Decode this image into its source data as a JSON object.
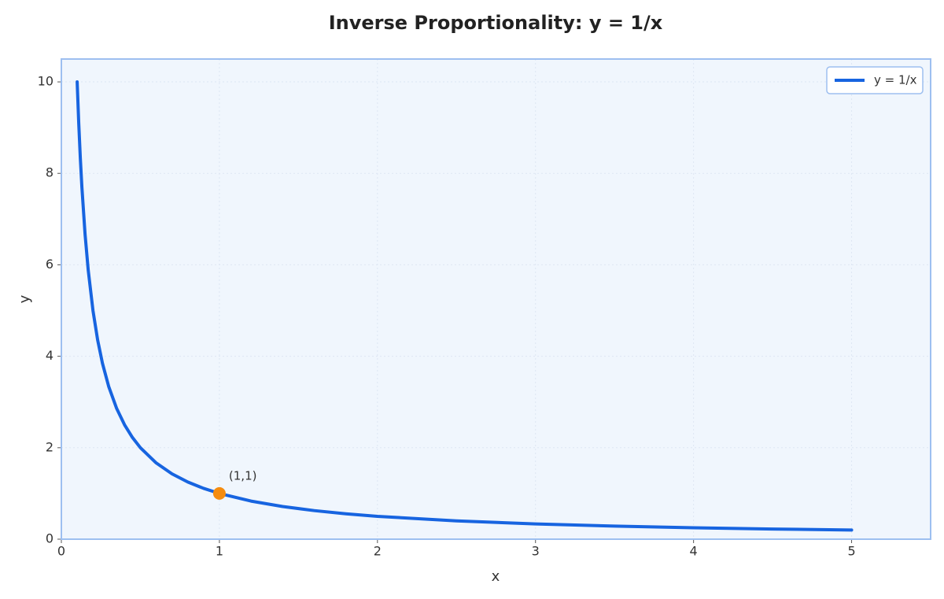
{
  "chart_data": {
    "type": "line",
    "title": "Inverse Proportionality: y = 1/x",
    "x_label": "x",
    "y_label": "y",
    "x": [
      0.1,
      0.11,
      0.12,
      0.13,
      0.15,
      0.17,
      0.2,
      0.23,
      0.26,
      0.3,
      0.35,
      0.4,
      0.45,
      0.5,
      0.6,
      0.7,
      0.8,
      0.9,
      1,
      1.2,
      1.4,
      1.6,
      1.8,
      2,
      2.5,
      3,
      3.5,
      4,
      4.5,
      5
    ],
    "series": [
      {
        "name": "y = 1/x",
        "color": "#1764e0",
        "values": [
          10,
          9.091,
          8.333,
          7.692,
          6.667,
          5.882,
          5,
          4.348,
          3.846,
          3.333,
          2.857,
          2.5,
          2.222,
          2,
          1.667,
          1.429,
          1.25,
          1.111,
          1,
          0.833,
          0.714,
          0.625,
          0.556,
          0.5,
          0.4,
          0.333,
          0.286,
          0.25,
          0.222,
          0.2
        ]
      }
    ],
    "annotations": [
      {
        "text": "(1,1)",
        "x": 1,
        "y": 1,
        "color": "#f58c0f"
      }
    ],
    "xlim": [
      0,
      5.5
    ],
    "ylim": [
      0,
      10.5
    ],
    "xticks": [
      0,
      1,
      2,
      3,
      4,
      5
    ],
    "yticks": [
      0,
      2,
      4,
      6,
      8,
      10
    ],
    "grid": true,
    "legend": "upper right"
  }
}
